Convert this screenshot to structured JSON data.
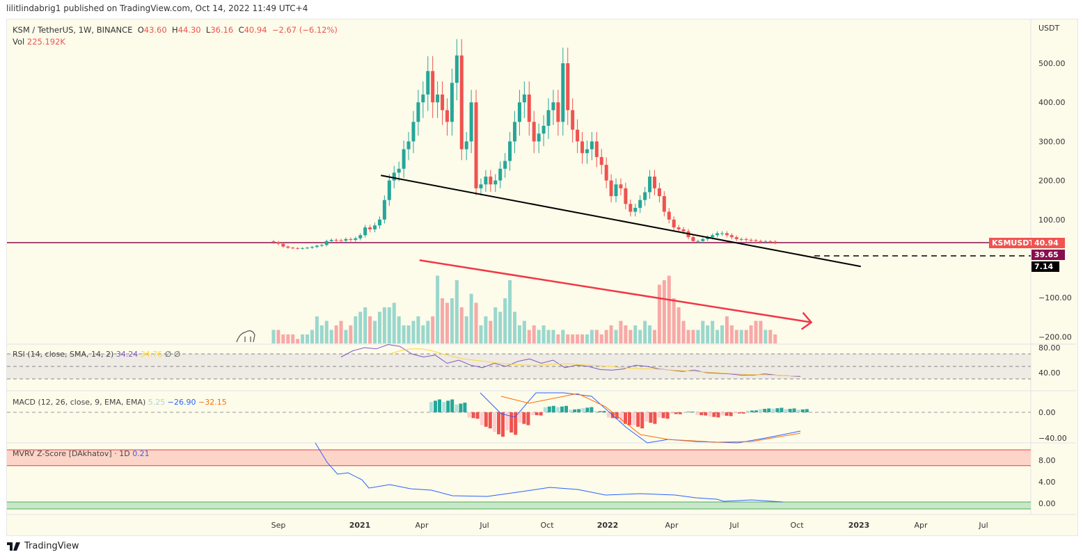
{
  "publisher_line": "lilitlindabrig1 published on TradingView.com, Oct 14, 2022 11:49 UTC+4",
  "legend": {
    "symbol": "KSM / TetherUS, 1W, BINANCE",
    "o_label": "O",
    "o": "43.60",
    "h_label": "H",
    "h": "44.30",
    "l_label": "L",
    "l": "36.16",
    "c_label": "C",
    "c": "40.94",
    "change": "−2.67 (−6.12%)",
    "vol_label": "Vol",
    "vol": "225.192K"
  },
  "currency": "USDT",
  "price_labels": {
    "symbol_tag": "KSMUSDT",
    "last": "40.94",
    "hline": "39.65",
    "trend": "7.14"
  },
  "indicators": {
    "rsi": {
      "title": "RSI (14, close, SMA, 14, 2)",
      "v1": "34.24",
      "v2": "34.76",
      "v3": "∅ ∅",
      "ticks": [
        "80.00",
        "40.00"
      ]
    },
    "macd": {
      "title": "MACD (12, 26, close, 9, EMA, EMA)",
      "hist": "5.25",
      "macd": "−26.90",
      "signal": "−32.15",
      "ticks": [
        "0.00",
        "−40.00"
      ]
    },
    "mvrv": {
      "title": "MVRV Z-Score [DAkhatov] · 1D",
      "value": "0.21",
      "ticks": [
        "8.00",
        "4.00",
        "0.00"
      ]
    }
  },
  "colors": {
    "up": "#26a69a",
    "down": "#ef5350",
    "vol_up": "#9ad7cd",
    "vol_down": "#f7a9a7",
    "hline": "#880e4f",
    "rsi": "#7e57c2",
    "rsi_ma": "#fdd835",
    "macd": "#2962ff",
    "signal": "#ff6d00",
    "mvrv": "#2962ff",
    "arrow": "#f23645"
  },
  "footer": {
    "brand": "TradingView"
  },
  "chart_data": {
    "type": "candlestick",
    "interval": "1W",
    "price_ticks": [
      "500.00",
      "400.00",
      "300.00",
      "200.00",
      "100.00",
      "−100.00",
      "−200.00"
    ],
    "time_ticks": [
      "Sep",
      "2021",
      "Apr",
      "Jul",
      "Oct",
      "2022",
      "Apr",
      "Jul",
      "Oct",
      "2023",
      "Apr",
      "Jul"
    ],
    "closes": [
      42,
      38,
      31,
      28,
      27,
      26,
      27,
      28,
      30,
      33,
      35,
      45,
      48,
      47,
      46,
      50,
      48,
      52,
      60,
      80,
      75,
      85,
      100,
      150,
      200,
      220,
      230,
      280,
      300,
      350,
      400,
      420,
      480,
      400,
      420,
      380,
      350,
      450,
      520,
      280,
      300,
      400,
      180,
      190,
      210,
      190,
      200,
      230,
      250,
      300,
      350,
      400,
      420,
      350,
      300,
      320,
      340,
      380,
      400,
      350,
      500,
      380,
      330,
      300,
      270,
      280,
      300,
      260,
      240,
      200,
      160,
      190,
      180,
      140,
      120,
      130,
      150,
      170,
      210,
      180,
      160,
      120,
      100,
      80,
      75,
      70,
      55,
      45,
      45,
      50,
      55,
      60,
      65,
      65,
      60,
      55,
      50,
      50,
      48,
      47,
      45,
      43,
      44,
      43.6,
      40.94
    ],
    "volume_relative": [
      3,
      3,
      2,
      2,
      2,
      1,
      2,
      2,
      3,
      6,
      4,
      5,
      3,
      4,
      5,
      3,
      4,
      6,
      7,
      8,
      6,
      5,
      7,
      8,
      8,
      9,
      6,
      4,
      4,
      5,
      6,
      4,
      5,
      6,
      15,
      10,
      9,
      10,
      14,
      8,
      6,
      11,
      9,
      4,
      6,
      5,
      8,
      7,
      10,
      14,
      7,
      4,
      5,
      3,
      4,
      3,
      4,
      3,
      3,
      2,
      3,
      2,
      2,
      2,
      2,
      2,
      3,
      3,
      2,
      3,
      4,
      3,
      5,
      4,
      3,
      4,
      3,
      5,
      4,
      3,
      13,
      14,
      15,
      10,
      8,
      5,
      3,
      3,
      3,
      5,
      4,
      5,
      3,
      4,
      6,
      4,
      3,
      3,
      3,
      4,
      5,
      5,
      3,
      3,
      2
    ],
    "hline_price": 39.65,
    "trendline": [
      [
        "2021-02-01",
        213
      ],
      [
        "2023-01-09",
        -20
      ]
    ],
    "arrow_line": [
      [
        "2021-03-30",
        -4
      ],
      [
        "2022-10-28",
        -163
      ]
    ],
    "rsi": [
      65,
      75,
      80,
      78,
      85,
      82,
      70,
      65,
      68,
      55,
      60,
      52,
      48,
      55,
      50,
      58,
      62,
      55,
      60,
      48,
      52,
      50,
      45,
      44,
      46,
      52,
      50,
      46,
      44,
      42,
      44,
      40,
      39,
      38,
      36,
      36,
      38,
      36,
      35,
      34
    ],
    "rsi_ma": [
      70,
      75,
      78,
      78,
      75,
      70,
      66,
      62,
      60,
      58,
      56,
      54,
      53,
      52,
      52,
      53,
      54,
      54,
      53,
      52,
      51,
      50,
      48,
      47,
      46,
      46,
      45,
      44,
      43,
      42,
      41,
      40,
      39,
      38,
      37,
      37,
      36,
      36,
      35,
      35
    ],
    "macd_hist": [
      20,
      20,
      15,
      -10,
      -25,
      -38,
      -35,
      -20,
      -5,
      10,
      10,
      5,
      8,
      2,
      -10,
      -20,
      -25,
      -18,
      -10,
      -3,
      1,
      -5,
      -8,
      -6,
      -2,
      3,
      6,
      7,
      6,
      5
    ]
  }
}
